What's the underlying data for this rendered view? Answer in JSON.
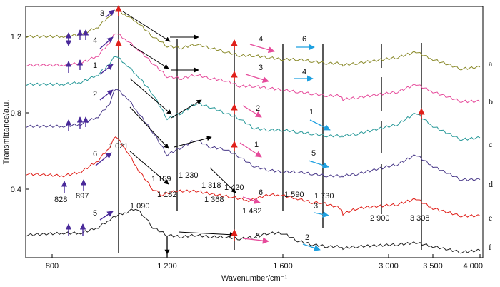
{
  "chart_data": {
    "type": "line",
    "xlabel": "Wavenumber/cm⁻¹",
    "ylabel": "Transmittance/a.u.",
    "x_tick_labels": [
      "800",
      "1 200",
      "1 600",
      "3 000",
      "3 500",
      "4 000"
    ],
    "y_tick_labels": [
      "0.4",
      "0.8",
      "1.2"
    ],
    "curve_labels": [
      "a",
      "b",
      "c",
      "d",
      "e",
      "f"
    ],
    "peak_labels": [
      "828",
      "897",
      "1 021",
      "1 090",
      "1 159",
      "1 182",
      "1 230",
      "1 318",
      "1 368",
      "1 420",
      "1 482",
      "1 590",
      "1 730",
      "2 900",
      "3 308"
    ],
    "step_numbers": [
      "3",
      "4",
      "1",
      "2",
      "6",
      "5",
      "4",
      "3",
      "2",
      "1",
      "6",
      "5",
      "6",
      "4",
      "1",
      "5",
      "3",
      "2"
    ],
    "series": [
      {
        "name": "a",
        "color": "#8a8a2a",
        "values": [
          [
            750,
            1.2
          ],
          [
            840,
            1.2
          ],
          [
            900,
            1.21
          ],
          [
            960,
            1.25
          ],
          [
            1000,
            1.31
          ],
          [
            1021,
            1.34
          ],
          [
            1060,
            1.31
          ],
          [
            1100,
            1.27
          ],
          [
            1150,
            1.2
          ],
          [
            1200,
            1.15
          ],
          [
            1250,
            1.14
          ],
          [
            1300,
            1.16
          ],
          [
            1350,
            1.14
          ],
          [
            1400,
            1.12
          ],
          [
            1450,
            1.1
          ],
          [
            1500,
            1.1
          ],
          [
            1550,
            1.09
          ],
          [
            1600,
            1.08
          ],
          [
            1650,
            1.08
          ],
          [
            1700,
            1.07
          ],
          [
            1750,
            1.06
          ],
          [
            1800,
            1.06
          ],
          [
            1900,
            1.05
          ],
          [
            2900,
            1.06
          ],
          [
            3100,
            1.09
          ],
          [
            3308,
            1.12
          ],
          [
            3500,
            1.08
          ],
          [
            3800,
            1.03
          ],
          [
            4000,
            1.04
          ]
        ]
      },
      {
        "name": "b",
        "color": "#e64b9b",
        "values": [
          [
            750,
            1.05
          ],
          [
            840,
            1.05
          ],
          [
            900,
            1.06
          ],
          [
            960,
            1.1
          ],
          [
            1000,
            1.17
          ],
          [
            1021,
            1.22
          ],
          [
            1060,
            1.18
          ],
          [
            1100,
            1.13
          ],
          [
            1150,
            1.06
          ],
          [
            1200,
            0.99
          ],
          [
            1250,
            0.98
          ],
          [
            1300,
            1.0
          ],
          [
            1350,
            0.98
          ],
          [
            1400,
            0.97
          ],
          [
            1450,
            0.94
          ],
          [
            1500,
            0.94
          ],
          [
            1550,
            0.93
          ],
          [
            1600,
            0.92
          ],
          [
            1650,
            0.91
          ],
          [
            1700,
            0.9
          ],
          [
            1750,
            0.89
          ],
          [
            1800,
            0.89
          ],
          [
            1900,
            0.87
          ],
          [
            2900,
            0.88
          ],
          [
            3100,
            0.91
          ],
          [
            3308,
            0.95
          ],
          [
            3500,
            0.91
          ],
          [
            3800,
            0.86
          ],
          [
            4000,
            0.86
          ]
        ]
      },
      {
        "name": "c",
        "color": "#2a9a9a",
        "values": [
          [
            750,
            0.95
          ],
          [
            840,
            0.95
          ],
          [
            900,
            0.96
          ],
          [
            960,
            1.0
          ],
          [
            1000,
            1.06
          ],
          [
            1021,
            1.1
          ],
          [
            1060,
            1.05
          ],
          [
            1100,
            0.99
          ],
          [
            1150,
            0.9
          ],
          [
            1200,
            0.77
          ],
          [
            1250,
            0.8
          ],
          [
            1300,
            0.85
          ],
          [
            1350,
            0.83
          ],
          [
            1400,
            0.8
          ],
          [
            1450,
            0.77
          ],
          [
            1500,
            0.72
          ],
          [
            1550,
            0.71
          ],
          [
            1600,
            0.71
          ],
          [
            1650,
            0.7
          ],
          [
            1700,
            0.69
          ],
          [
            1750,
            0.68
          ],
          [
            1800,
            0.68
          ],
          [
            1900,
            0.68
          ],
          [
            2900,
            0.69
          ],
          [
            3100,
            0.74
          ],
          [
            3308,
            0.8
          ],
          [
            3500,
            0.73
          ],
          [
            3800,
            0.66
          ],
          [
            4000,
            0.67
          ]
        ]
      },
      {
        "name": "d",
        "color": "#4a3a8a",
        "values": [
          [
            750,
            0.73
          ],
          [
            840,
            0.73
          ],
          [
            900,
            0.74
          ],
          [
            960,
            0.78
          ],
          [
            1000,
            0.85
          ],
          [
            1021,
            0.93
          ],
          [
            1060,
            0.88
          ],
          [
            1100,
            0.8
          ],
          [
            1150,
            0.7
          ],
          [
            1200,
            0.58
          ],
          [
            1250,
            0.62
          ],
          [
            1300,
            0.66
          ],
          [
            1350,
            0.62
          ],
          [
            1400,
            0.61
          ],
          [
            1450,
            0.57
          ],
          [
            1500,
            0.52
          ],
          [
            1550,
            0.5
          ],
          [
            1600,
            0.49
          ],
          [
            1650,
            0.49
          ],
          [
            1700,
            0.48
          ],
          [
            1750,
            0.47
          ],
          [
            1800,
            0.47
          ],
          [
            1900,
            0.47
          ],
          [
            2900,
            0.48
          ],
          [
            3100,
            0.53
          ],
          [
            3308,
            0.58
          ],
          [
            3500,
            0.52
          ],
          [
            3800,
            0.45
          ],
          [
            4000,
            0.45
          ]
        ]
      },
      {
        "name": "e",
        "color": "#e0201a",
        "values": [
          [
            750,
            0.48
          ],
          [
            840,
            0.47
          ],
          [
            900,
            0.49
          ],
          [
            960,
            0.55
          ],
          [
            1000,
            0.62
          ],
          [
            1021,
            0.68
          ],
          [
            1060,
            0.6
          ],
          [
            1100,
            0.5
          ],
          [
            1150,
            0.4
          ],
          [
            1182,
            0.37
          ],
          [
            1230,
            0.39
          ],
          [
            1300,
            0.39
          ],
          [
            1368,
            0.37
          ],
          [
            1420,
            0.36
          ],
          [
            1482,
            0.34
          ],
          [
            1550,
            0.37
          ],
          [
            1590,
            0.37
          ],
          [
            1650,
            0.35
          ],
          [
            1700,
            0.33
          ],
          [
            1730,
            0.33
          ],
          [
            1800,
            0.3
          ],
          [
            1900,
            0.27
          ],
          [
            2900,
            0.3
          ],
          [
            3100,
            0.32
          ],
          [
            3308,
            0.35
          ],
          [
            3500,
            0.3
          ],
          [
            3800,
            0.26
          ],
          [
            4000,
            0.26
          ]
        ]
      },
      {
        "name": "f",
        "color": "#222222",
        "values": [
          [
            750,
            0.16
          ],
          [
            840,
            0.17
          ],
          [
            900,
            0.17
          ],
          [
            960,
            0.2
          ],
          [
            1000,
            0.24
          ],
          [
            1021,
            0.26
          ],
          [
            1060,
            0.28
          ],
          [
            1090,
            0.3
          ],
          [
            1120,
            0.26
          ],
          [
            1150,
            0.2
          ],
          [
            1200,
            0.16
          ],
          [
            1250,
            0.15
          ],
          [
            1300,
            0.16
          ],
          [
            1350,
            0.15
          ],
          [
            1400,
            0.15
          ],
          [
            1450,
            0.14
          ],
          [
            1500,
            0.15
          ],
          [
            1550,
            0.17
          ],
          [
            1600,
            0.17
          ],
          [
            1650,
            0.13
          ],
          [
            1700,
            0.11
          ],
          [
            1750,
            0.1
          ],
          [
            1800,
            0.1
          ],
          [
            1900,
            0.09
          ],
          [
            2900,
            0.1
          ],
          [
            3100,
            0.11
          ],
          [
            3308,
            0.12
          ],
          [
            3500,
            0.1
          ],
          [
            3800,
            0.07
          ],
          [
            4000,
            0.08
          ]
        ]
      }
    ]
  },
  "colors": {
    "pink_arrow": "#e64b9b",
    "cyan_arrow": "#1ea0e0",
    "purple_arrow": "#4a2a9a",
    "red_arrow": "#e0201a"
  }
}
